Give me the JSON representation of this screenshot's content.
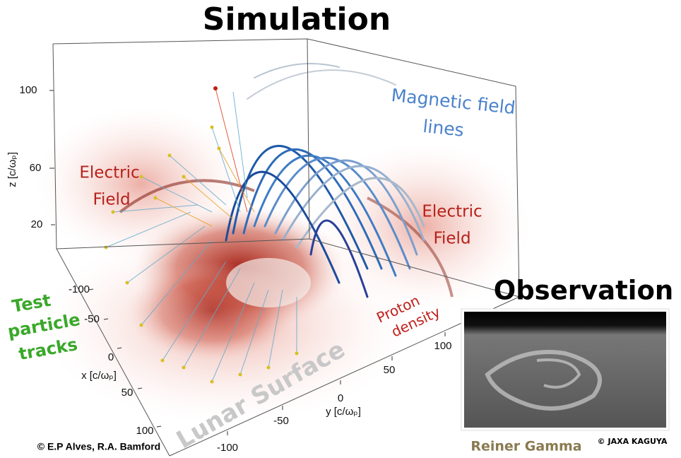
{
  "title": "Simulation",
  "observation": {
    "title": "Observation",
    "caption": "Reiner Gamma",
    "credit": "© JAXA  KAGUYA"
  },
  "labels": {
    "magnetic": [
      "Magnetic field",
      "lines"
    ],
    "electric_left": [
      "Electric",
      "Field"
    ],
    "electric_right": [
      "Electric",
      "Field"
    ],
    "particles": [
      "Test",
      "particle",
      "tracks"
    ],
    "proton": [
      "Proton",
      "density"
    ],
    "surface": "Lunar Surface"
  },
  "credit": "© E.P Alves, R.A. Bamford",
  "axes": {
    "z": {
      "label": "z [c/ωₚ]",
      "ticks": [
        100,
        60,
        20
      ]
    },
    "x": {
      "label": "x [c/ωₚ]",
      "ticks": [
        -100,
        -50,
        0,
        50,
        100
      ]
    },
    "y": {
      "label": "y [c/ωₚ]",
      "ticks": [
        -100,
        -50,
        0,
        50,
        100
      ]
    }
  }
}
